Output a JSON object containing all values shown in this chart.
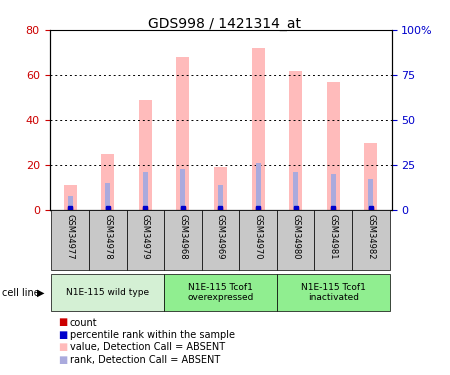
{
  "title": "GDS998 / 1421314_at",
  "samples": [
    "GSM34977",
    "GSM34978",
    "GSM34979",
    "GSM34968",
    "GSM34969",
    "GSM34970",
    "GSM34980",
    "GSM34981",
    "GSM34982"
  ],
  "value_absent": [
    11.0,
    25.0,
    49.0,
    68.0,
    19.0,
    72.0,
    62.0,
    57.0,
    30.0
  ],
  "rank_absent_pct": [
    8.0,
    15.0,
    21.0,
    23.0,
    14.0,
    26.0,
    21.0,
    20.0,
    17.0
  ],
  "ylim_left": [
    0,
    80
  ],
  "ylim_right": [
    0,
    100
  ],
  "yticks_left": [
    0,
    20,
    40,
    60,
    80
  ],
  "ytick_labels_left": [
    "0",
    "20",
    "40",
    "60",
    "80"
  ],
  "yticks_right": [
    0,
    25,
    50,
    75,
    100
  ],
  "ytick_labels_right": [
    "0",
    "25",
    "50",
    "75",
    "100%"
  ],
  "color_value_absent": "#ffbbbb",
  "color_rank_absent": "#aaaadd",
  "color_count": "#cc0000",
  "color_percentile": "#0000cc",
  "axis_left_color": "#cc0000",
  "axis_right_color": "#0000cc",
  "bg_label_row": "#c8c8c8",
  "bg_group_wild": "#d4f0d4",
  "bg_group_over": "#90ee90",
  "bg_group_inact": "#90ee90",
  "groups": [
    {
      "start": 0,
      "end": 2,
      "label": "N1E-115 wild type"
    },
    {
      "start": 3,
      "end": 5,
      "label": "N1E-115 Tcof1\noverexpressed"
    },
    {
      "start": 6,
      "end": 8,
      "label": "N1E-115 Tcof1\ninactivated"
    }
  ]
}
